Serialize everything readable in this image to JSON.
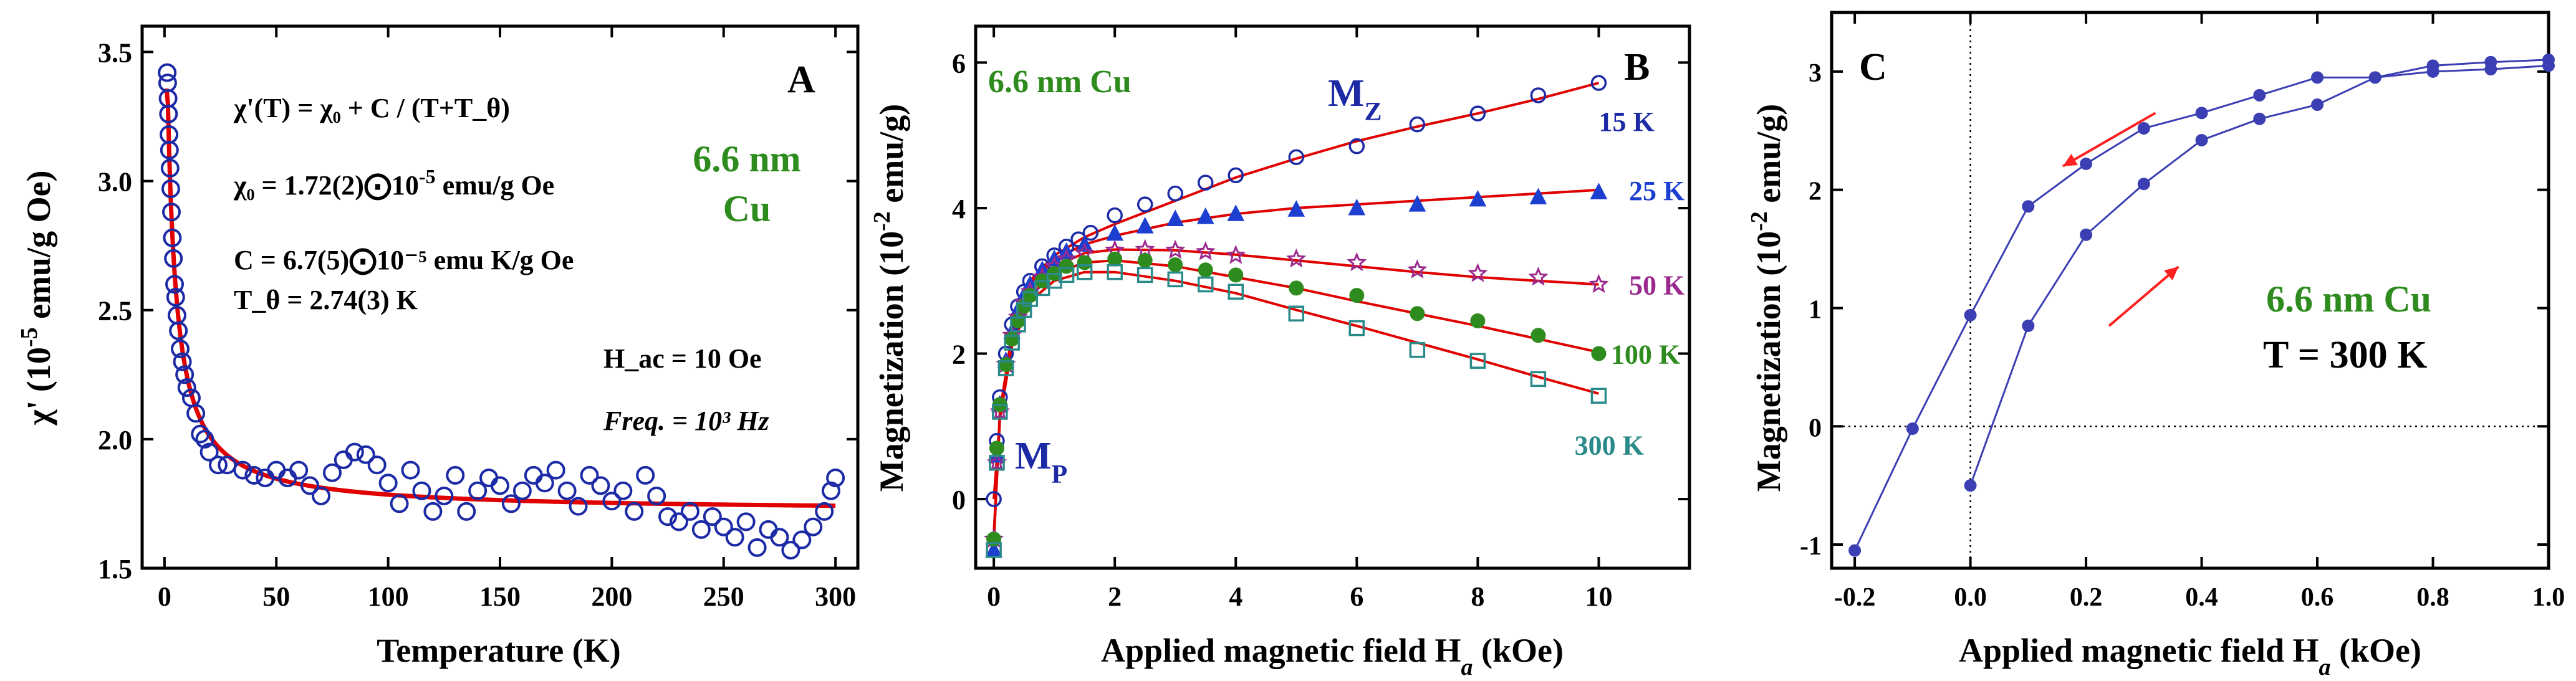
{
  "chart_data": [
    {
      "panel": "A",
      "type": "scatter",
      "xlabel": "Temperature (K)",
      "ylabel": {
        "main": "χ' (10",
        "sup": "-5",
        "rest": " emu/g Oe)"
      },
      "xlim": [
        -10,
        310
      ],
      "ylim": [
        1.5,
        3.6
      ],
      "xticks": [
        0,
        50,
        100,
        150,
        200,
        250,
        300
      ],
      "yticks": [
        1.5,
        2.0,
        2.5,
        3.0,
        3.5
      ],
      "yticklabels": [
        "1.5",
        "2.0",
        "2.5",
        "3.0",
        "3.5"
      ],
      "annotations": {
        "eq1": "χ'(T) = χ₀ + C / (T+T_θ)",
        "eq2": {
          "main": "χ₀ = 1.72(2)⨀10",
          "sup": "-5",
          "rest": " emu/g Oe"
        },
        "eq3": "C = 6.7(5)⨀10⁻⁵ emu K/g Oe",
        "eq4": "T_θ = 2.74(3) K",
        "hac": "H_ac = 10 Oe",
        "freq": "Freq. = 10³ Hz",
        "material_line1": "6.6 nm",
        "material_line2": "Cu"
      },
      "fit": {
        "chi0": 1.72,
        "C": 6.7,
        "Ttheta": 2.74,
        "color": "#e00000"
      },
      "series": [
        {
          "name": "data",
          "marker": "open-circle",
          "color": "#1c2aa6",
          "x": [
            1.2,
            1.4,
            1.6,
            1.8,
            2.0,
            2.2,
            2.5,
            2.8,
            3.1,
            3.5,
            4.0,
            4.5,
            5.0,
            5.6,
            6.2,
            7.0,
            8.0,
            9.0,
            10.0,
            12,
            14,
            16,
            18,
            20,
            24,
            28,
            35,
            40,
            45,
            50,
            55,
            60,
            65,
            70,
            75,
            80,
            85,
            90,
            95,
            100,
            105,
            110,
            115,
            120,
            125,
            130,
            135,
            140,
            145,
            150,
            155,
            160,
            165,
            170,
            175,
            180,
            185,
            190,
            195,
            200,
            205,
            210,
            215,
            220,
            225,
            230,
            235,
            240,
            245,
            250,
            255,
            260,
            265,
            270,
            275,
            280,
            285,
            290,
            295,
            298,
            300
          ],
          "y": [
            3.42,
            3.38,
            3.32,
            3.26,
            3.18,
            3.12,
            3.05,
            2.97,
            2.88,
            2.78,
            2.7,
            2.6,
            2.55,
            2.48,
            2.42,
            2.35,
            2.3,
            2.25,
            2.2,
            2.16,
            2.1,
            2.02,
            2.0,
            1.95,
            1.9,
            1.9,
            1.88,
            1.86,
            1.85,
            1.88,
            1.85,
            1.88,
            1.82,
            1.78,
            1.87,
            1.92,
            1.95,
            1.94,
            1.9,
            1.83,
            1.75,
            1.88,
            1.8,
            1.72,
            1.78,
            1.86,
            1.72,
            1.8,
            1.85,
            1.82,
            1.75,
            1.8,
            1.86,
            1.83,
            1.88,
            1.8,
            1.74,
            1.86,
            1.82,
            1.76,
            1.8,
            1.72,
            1.86,
            1.78,
            1.7,
            1.68,
            1.72,
            1.65,
            1.7,
            1.66,
            1.62,
            1.68,
            1.58,
            1.65,
            1.62,
            1.57,
            1.61,
            1.66,
            1.72,
            1.8,
            1.85
          ]
        }
      ]
    },
    {
      "panel": "B",
      "type": "scatter",
      "xlabel": {
        "main": "Applied magnetic field H",
        "sub": "a",
        "rest": " (kOe)"
      },
      "ylabel": {
        "main": "Magnetization (10",
        "sup": "-2",
        "rest": " emu/g)"
      },
      "xlim": [
        -0.3,
        11.5
      ],
      "ylim": [
        -0.95,
        6.5
      ],
      "xticks": [
        0,
        2,
        4,
        6,
        8,
        10
      ],
      "yticks": [
        0,
        2,
        4,
        6
      ],
      "annotations": {
        "material": "6.6 nm Cu",
        "mz": "M",
        "mz_sub": "Z",
        "mp": "M",
        "mp_sub": "P"
      },
      "series": [
        {
          "name": "15 K",
          "marker": "open-circle",
          "color": "#1c2aa6",
          "x": [
            0,
            0.05,
            0.1,
            0.2,
            0.3,
            0.4,
            0.5,
            0.6,
            0.8,
            1.0,
            1.2,
            1.4,
            1.6,
            2,
            2.5,
            3,
            3.5,
            4,
            5,
            6,
            7,
            8,
            9,
            10
          ],
          "y": [
            0.0,
            0.8,
            1.4,
            2.0,
            2.4,
            2.65,
            2.85,
            3.0,
            3.2,
            3.35,
            3.47,
            3.57,
            3.66,
            3.9,
            4.05,
            4.2,
            4.35,
            4.45,
            4.7,
            4.85,
            5.15,
            5.3,
            5.55,
            5.72
          ],
          "fit": [
            [
              0,
              0.0
            ],
            [
              0.1,
              1.1
            ],
            [
              0.3,
              2.3
            ],
            [
              0.6,
              3.0
            ],
            [
              1.0,
              3.35
            ],
            [
              1.5,
              3.6
            ],
            [
              2,
              3.78
            ],
            [
              3,
              4.1
            ],
            [
              4,
              4.42
            ],
            [
              5,
              4.68
            ],
            [
              6,
              4.92
            ],
            [
              7,
              5.12
            ],
            [
              8,
              5.3
            ],
            [
              9,
              5.5
            ],
            [
              10,
              5.72
            ]
          ]
        },
        {
          "name": "25 K",
          "marker": "filled-triangle",
          "color": "#1c3fd0",
          "x": [
            0,
            0.05,
            0.1,
            0.2,
            0.3,
            0.4,
            0.5,
            0.6,
            0.8,
            1.0,
            1.2,
            1.5,
            2,
            2.5,
            3,
            3.5,
            4,
            5,
            6,
            7,
            8,
            9,
            10
          ],
          "y": [
            -0.7,
            0.6,
            1.3,
            1.9,
            2.3,
            2.6,
            2.8,
            2.95,
            3.15,
            3.3,
            3.4,
            3.5,
            3.65,
            3.75,
            3.85,
            3.88,
            3.92,
            3.98,
            4.0,
            4.05,
            4.12,
            4.15,
            4.22
          ],
          "fit": [
            [
              0,
              -0.6
            ],
            [
              0.1,
              1.2
            ],
            [
              0.3,
              2.25
            ],
            [
              0.6,
              2.95
            ],
            [
              1,
              3.3
            ],
            [
              1.5,
              3.5
            ],
            [
              2,
              3.62
            ],
            [
              3,
              3.8
            ],
            [
              4,
              3.92
            ],
            [
              5,
              4.0
            ],
            [
              6,
              4.05
            ],
            [
              7,
              4.1
            ],
            [
              8,
              4.15
            ],
            [
              9,
              4.2
            ],
            [
              10,
              4.25
            ]
          ]
        },
        {
          "name": "50 K",
          "marker": "open-star",
          "color": "#9b2a8e",
          "x": [
            0,
            0.05,
            0.1,
            0.2,
            0.3,
            0.4,
            0.5,
            0.6,
            0.8,
            1.0,
            1.2,
            1.5,
            2,
            2.5,
            3,
            3.5,
            4,
            5,
            6,
            7,
            8,
            9,
            10
          ],
          "y": [
            -0.55,
            0.5,
            1.2,
            1.85,
            2.25,
            2.5,
            2.7,
            2.85,
            3.05,
            3.2,
            3.3,
            3.38,
            3.42,
            3.43,
            3.42,
            3.4,
            3.35,
            3.3,
            3.25,
            3.15,
            3.1,
            3.05,
            2.95
          ],
          "fit": [
            [
              0,
              -0.5
            ],
            [
              0.1,
              1.1
            ],
            [
              0.3,
              2.2
            ],
            [
              0.6,
              2.85
            ],
            [
              1,
              3.2
            ],
            [
              1.5,
              3.38
            ],
            [
              2,
              3.43
            ],
            [
              3,
              3.42
            ],
            [
              4,
              3.36
            ],
            [
              5,
              3.28
            ],
            [
              6,
              3.2
            ],
            [
              7,
              3.12
            ],
            [
              8,
              3.05
            ],
            [
              9,
              3.0
            ],
            [
              10,
              2.95
            ]
          ]
        },
        {
          "name": "100 K",
          "marker": "filled-circle",
          "color": "#2e8b1e",
          "x": [
            0,
            0.05,
            0.1,
            0.2,
            0.3,
            0.4,
            0.5,
            0.6,
            0.8,
            1.0,
            1.2,
            1.5,
            2,
            2.5,
            3,
            3.5,
            4,
            5,
            6,
            7,
            8,
            9,
            10
          ],
          "y": [
            -0.55,
            0.7,
            1.3,
            1.85,
            2.2,
            2.45,
            2.65,
            2.8,
            3.0,
            3.1,
            3.2,
            3.25,
            3.3,
            3.28,
            3.22,
            3.15,
            3.08,
            2.9,
            2.8,
            2.55,
            2.45,
            2.25,
            2.0
          ],
          "fit": [
            [
              0,
              -0.5
            ],
            [
              0.1,
              1.15
            ],
            [
              0.3,
              2.2
            ],
            [
              0.6,
              2.8
            ],
            [
              1,
              3.1
            ],
            [
              1.5,
              3.25
            ],
            [
              2,
              3.28
            ],
            [
              3,
              3.2
            ],
            [
              4,
              3.05
            ],
            [
              5,
              2.9
            ],
            [
              6,
              2.72
            ],
            [
              7,
              2.55
            ],
            [
              8,
              2.38
            ],
            [
              9,
              2.2
            ],
            [
              10,
              2.02
            ]
          ]
        },
        {
          "name": "300 K",
          "marker": "open-square",
          "color": "#2a8a8a",
          "x": [
            0,
            0.05,
            0.1,
            0.2,
            0.3,
            0.4,
            0.5,
            0.6,
            0.8,
            1.0,
            1.2,
            1.5,
            2,
            2.5,
            3,
            3.5,
            4,
            5,
            6,
            7,
            8,
            9,
            10
          ],
          "y": [
            -0.7,
            0.5,
            1.2,
            1.8,
            2.15,
            2.4,
            2.6,
            2.75,
            2.9,
            3.0,
            3.08,
            3.12,
            3.12,
            3.08,
            3.02,
            2.95,
            2.85,
            2.55,
            2.35,
            2.05,
            1.9,
            1.65,
            1.42
          ],
          "fit": [
            [
              0,
              -0.6
            ],
            [
              0.1,
              1.1
            ],
            [
              0.3,
              2.1
            ],
            [
              0.6,
              2.72
            ],
            [
              1,
              3.0
            ],
            [
              1.5,
              3.12
            ],
            [
              2,
              3.12
            ],
            [
              3,
              3.0
            ],
            [
              4,
              2.83
            ],
            [
              5,
              2.6
            ],
            [
              6,
              2.38
            ],
            [
              7,
              2.15
            ],
            [
              8,
              1.92
            ],
            [
              9,
              1.68
            ],
            [
              10,
              1.45
            ]
          ]
        }
      ],
      "series_label_colors": {
        "15 K": "#1c2aa6",
        "25 K": "#1c3fd0",
        "50 K": "#9b2a8e",
        "100 K": "#2e8b1e",
        "300 K": "#2a8a8a"
      },
      "fit_color": "#e00000"
    },
    {
      "panel": "C",
      "type": "line",
      "xlabel": {
        "main": "Applied magnetic field H",
        "sub": "a",
        "rest": " (kOe)"
      },
      "ylabel": {
        "main": "Magnetization (10",
        "sup": "-2",
        "rest": " emu/g)"
      },
      "xlim": [
        -0.24,
        1.0
      ],
      "ylim": [
        -1.2,
        3.5
      ],
      "xticks": [
        -0.2,
        0.0,
        0.2,
        0.4,
        0.6,
        0.8,
        1.0
      ],
      "xticklabels": [
        "-0.2",
        "0.0",
        "0.2",
        "0.4",
        "0.6",
        "0.8",
        "1.0"
      ],
      "yticks": [
        -1,
        0,
        1,
        2,
        3
      ],
      "annotations": {
        "material": "6.6 nm Cu",
        "temperature": "T = 300 K"
      },
      "series": [
        {
          "name": "decreasing",
          "color": "#3b3fb3",
          "x": [
            1.0,
            0.9,
            0.8,
            0.7,
            0.6,
            0.5,
            0.4,
            0.3,
            0.2,
            0.1,
            0.0,
            -0.1,
            -0.2
          ],
          "y": [
            3.1,
            3.08,
            3.05,
            2.95,
            2.95,
            2.8,
            2.65,
            2.52,
            2.22,
            1.86,
            0.94,
            -0.02,
            -1.05
          ]
        },
        {
          "name": "increasing",
          "color": "#3b3fb3",
          "x": [
            0.0,
            0.1,
            0.2,
            0.3,
            0.4,
            0.5,
            0.6,
            0.7,
            0.8,
            0.9,
            1.0
          ],
          "y": [
            -0.5,
            0.85,
            1.62,
            2.05,
            2.42,
            2.6,
            2.72,
            2.95,
            3.0,
            3.02,
            3.05
          ]
        }
      ],
      "arrow_color": "#ff2020"
    }
  ],
  "colors": {
    "fit_red": "#e00000",
    "annotation_green": "#2e8b1e",
    "annotation_navy": "#1c2aa6"
  }
}
